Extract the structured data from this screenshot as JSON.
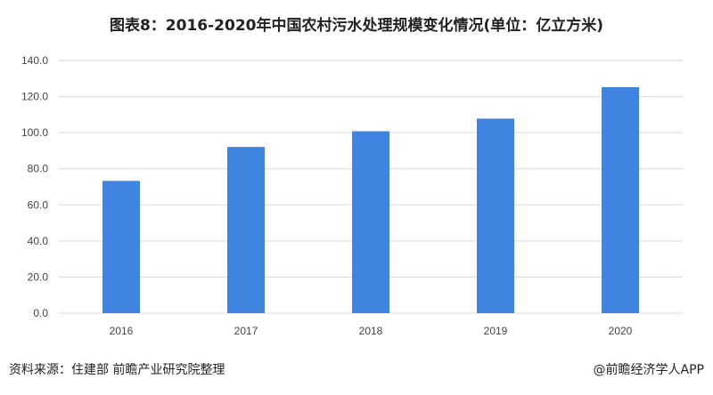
{
  "title": "图表8：2016-2020年中国农村污水处理规模变化情况(单位：亿立方米)",
  "footer": {
    "source": "资料来源：住建部 前瞻产业研究院整理",
    "brand": "@前瞻经济学人APP"
  },
  "colors": {
    "bar": "#3f84e0",
    "grid": "#d9d9d9"
  },
  "chart_data": {
    "type": "bar",
    "title": "图表8：2016-2020年中国农村污水处理规模变化情况(单位：亿立方米)",
    "categories": [
      "2016",
      "2017",
      "2018",
      "2019",
      "2020"
    ],
    "values": [
      73.3,
      92.1,
      100.8,
      107.8,
      125.2
    ],
    "ylim": [
      0,
      140
    ],
    "yticks": [
      "0.0",
      "20.0",
      "40.0",
      "60.0",
      "80.0",
      "100.0",
      "120.0",
      "140.0"
    ],
    "grid": true,
    "legend": "none"
  }
}
